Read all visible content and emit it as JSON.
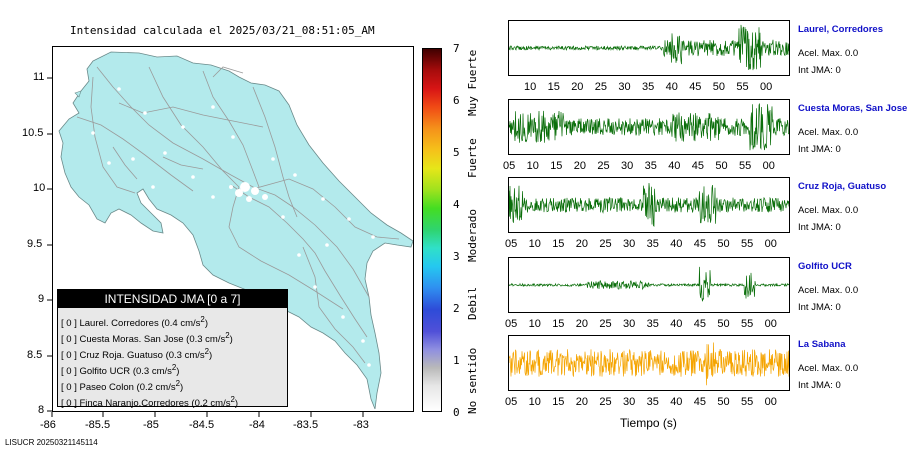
{
  "map": {
    "title": "Intensidad calculada el 2025/03/21_08:51:05_AM",
    "lon_ticks": [
      "-86",
      "-85.5",
      "-85",
      "-84.5",
      "-84",
      "-83.5",
      "-83"
    ],
    "lat_ticks": [
      "11",
      "10.5",
      "10",
      "9.5",
      "9",
      "8.5",
      "8"
    ],
    "land_color": "#b3eaec"
  },
  "colorbar": {
    "ticks": [
      "7",
      "6",
      "5",
      "4",
      "3",
      "2",
      "1",
      "0"
    ],
    "words": [
      "Muy Fuerte",
      "Fuerte",
      "Moderado",
      "Debil",
      "No sentido"
    ]
  },
  "legend": {
    "title": "INTENSIDAD JMA [0 a 7]",
    "rows": [
      {
        "value": "[ 0 ]",
        "name": "Laurel. Corredores",
        "accel": "(0.4 cm/s",
        "unit_sup": "2",
        "close": ")"
      },
      {
        "value": "[ 0 ]",
        "name": "Cuesta Moras. San Jose",
        "accel": "(0.3 cm/s",
        "unit_sup": "2",
        "close": ")"
      },
      {
        "value": "[ 0 ]",
        "name": "Cruz Roja. Guatuso",
        "accel": "(0.3 cm/s",
        "unit_sup": "2",
        "close": ")"
      },
      {
        "value": "[ 0 ]",
        "name": "Golfito UCR",
        "accel": "(0.3 cm/s",
        "unit_sup": "2",
        "close": ")"
      },
      {
        "value": "[ 0 ]",
        "name": "Paseo Colon",
        "accel": "(0.2 cm/s",
        "unit_sup": "2",
        "close": ")"
      },
      {
        "value": "[ 0 ]",
        "name": "Finca Naranjo.Corredores",
        "accel": "(0.2 cm/s",
        "unit_sup": "2",
        "close": ")"
      }
    ]
  },
  "footer": "LISUCR 20250321145114",
  "stations": [
    {
      "name": "Laurel, Corredores",
      "accel": "Acel. Max. 0.0",
      "jma": "Int JMA: 0",
      "color": "#0a6e0a",
      "ticks": [
        "10",
        "15",
        "20",
        "25",
        "30",
        "35",
        "40",
        "45",
        "50",
        "55",
        "00"
      ]
    },
    {
      "name": "Cuesta Moras, San Jose",
      "accel": "Acel. Max. 0.0",
      "jma": "Int JMA: 0",
      "color": "#0a6e0a",
      "ticks": [
        "05",
        "10",
        "15",
        "20",
        "25",
        "30",
        "35",
        "40",
        "45",
        "50",
        "55",
        "00"
      ]
    },
    {
      "name": "Cruz Roja, Guatuso",
      "accel": "Acel. Max. 0.0",
      "jma": "Int JMA: 0",
      "color": "#0a6e0a",
      "ticks": [
        "05",
        "10",
        "15",
        "20",
        "25",
        "30",
        "35",
        "40",
        "45",
        "50",
        "55",
        "00"
      ]
    },
    {
      "name": "Golfito UCR",
      "accel": "Acel. Max. 0.0",
      "jma": "Int JMA: 0",
      "color": "#0a6e0a",
      "ticks": [
        "05",
        "10",
        "15",
        "20",
        "25",
        "30",
        "35",
        "40",
        "45",
        "50",
        "55",
        "00"
      ]
    },
    {
      "name": "La Sabana",
      "accel": "Acel. Max. 0.0",
      "jma": "Int JMA: 0",
      "color": "#f5a400",
      "ticks": [
        "05",
        "10",
        "15",
        "20",
        "25",
        "30",
        "35",
        "40",
        "45",
        "50",
        "55",
        "00"
      ]
    }
  ],
  "time_axis_label": "Tiempo (s)"
}
